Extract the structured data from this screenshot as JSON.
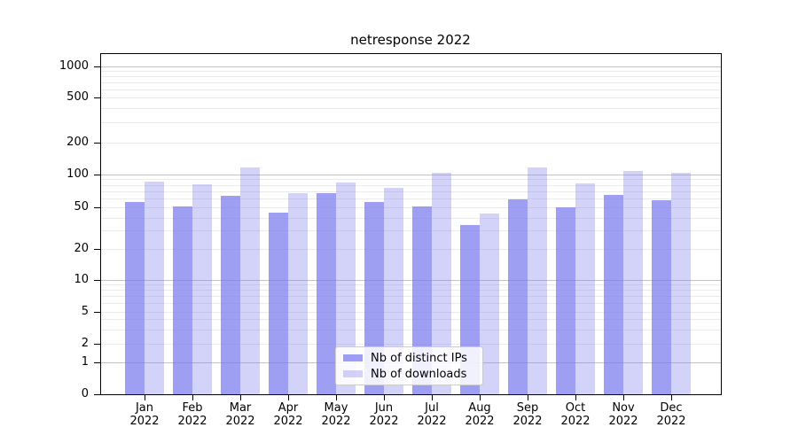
{
  "chart_data": {
    "type": "bar",
    "title": "netresponse 2022",
    "categories": [
      "Jan",
      "Feb",
      "Mar",
      "Apr",
      "May",
      "Jun",
      "Jul",
      "Aug",
      "Sep",
      "Oct",
      "Nov",
      "Dec"
    ],
    "year_label": "2022",
    "series": [
      {
        "name": "Nb of distinct IPs",
        "color": "rgba(121,121,238,0.72)",
        "values": [
          56,
          51,
          64,
          45,
          67,
          56,
          51,
          34,
          59,
          50,
          65,
          58
        ]
      },
      {
        "name": "Nb of downloads",
        "color": "rgba(121,121,238,0.33)",
        "values": [
          86,
          81,
          117,
          68,
          85,
          76,
          104,
          44,
          117,
          83,
          108,
          104
        ]
      }
    ],
    "y_axis": {
      "scale": "symlog",
      "ticks": [
        0,
        1,
        2,
        5,
        10,
        20,
        50,
        100,
        200,
        500,
        1000
      ],
      "minor_gridlines": [
        2,
        3,
        4,
        5,
        6,
        7,
        8,
        9,
        20,
        30,
        40,
        50,
        60,
        70,
        80,
        90,
        200,
        300,
        400,
        500,
        600,
        700,
        800,
        900
      ],
      "major_gridlines": [
        1,
        10,
        100,
        1000
      ]
    },
    "legend": {
      "position": "bottom-center",
      "entries": [
        "Nb of distinct IPs",
        "Nb of downloads"
      ]
    },
    "colors": {
      "grid_major": "#c3c3c3",
      "grid_minor": "#ebebeb",
      "spine": "#000000",
      "background": "#ffffff"
    }
  }
}
